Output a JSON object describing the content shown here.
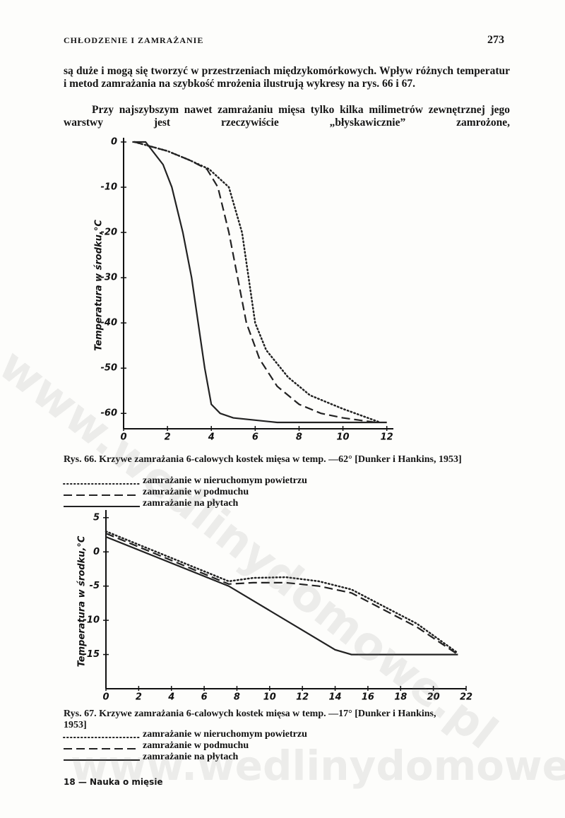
{
  "header": {
    "title": "CHŁODZENIE I ZAMRAŻANIE",
    "page_number": "273"
  },
  "paragraphs": [
    "są duże i mogą się tworzyć w przestrzeniach międzykomórkowych. Wpływ różnych temperatur i metod zamrażania na szybkość mrożenia ilustrują wykresy na rys. 66 i 67.",
    "Przy najszybszym nawet zamrażaniu mięsa tylko kilka milimetrów zewnętrznej jego warstwy jest rzeczywiście „błyskawicznie” zamrożone,"
  ],
  "chart_data": [
    {
      "type": "line",
      "caption": "Rys. 66. Krzywe zamrażania 6-calowych kostek mięsa w temp. —62° [Dunker i Hankins, 1953]",
      "ylabel": "Temperatura w środku,°C",
      "xlim": [
        0,
        12.3
      ],
      "xticks": [
        0,
        2,
        4,
        6,
        8,
        10,
        12
      ],
      "ylim": [
        -63.4,
        0
      ],
      "yticks": [
        0,
        -10,
        -20,
        -30,
        -40,
        -50,
        -60
      ],
      "series": [
        {
          "name": "zamrażanie w nieruchomym powietrzu",
          "style": "dotted",
          "color": "#222",
          "x": [
            0.5,
            2,
            3,
            3.9,
            4.8,
            5.4,
            5.7,
            6,
            6.5,
            7.5,
            8.5,
            10,
            11.7
          ],
          "values": [
            0,
            -2,
            -4,
            -6,
            -10,
            -20,
            -30,
            -40,
            -46,
            -52,
            -56,
            -59,
            -62
          ]
        },
        {
          "name": "zamrażanie w podmuchu",
          "style": "dashed",
          "color": "#222",
          "x": [
            0.5,
            2,
            3,
            3.8,
            4.3,
            4.8,
            5.2,
            5.6,
            6.2,
            7,
            8,
            9,
            10,
            11.5
          ],
          "values": [
            0,
            -2,
            -4,
            -6,
            -10,
            -20,
            -30,
            -40,
            -48,
            -54,
            -58,
            -60,
            -61,
            -62
          ]
        },
        {
          "name": "zamrażanie na płytach",
          "style": "solid",
          "color": "#222",
          "x": [
            0.4,
            1,
            1.8,
            2.2,
            2.7,
            3.1,
            3.4,
            3.7,
            4,
            4.4,
            5,
            7,
            12
          ],
          "values": [
            0,
            0,
            -5,
            -10,
            -20,
            -30,
            -40,
            -50,
            -58,
            -60,
            -61,
            -62,
            -62
          ]
        }
      ]
    },
    {
      "type": "line",
      "caption": "Rys. 67. Krzywe zamrażania 6-calowych kostek mięsa w temp. —17° [Dunker i Hankins, 1953]",
      "ylabel": "Temperatura w środku,°C",
      "xlim": [
        0,
        22
      ],
      "xticks": [
        0,
        2,
        4,
        6,
        8,
        10,
        12,
        14,
        16,
        18,
        20,
        22
      ],
      "ylim": [
        -20,
        5.5
      ],
      "yticks": [
        5,
        0,
        -5,
        -10,
        -15
      ],
      "series": [
        {
          "name": "zamrażanie w nieruchomym powietrzu",
          "style": "dotted",
          "color": "#222",
          "x": [
            0,
            7.5,
            9,
            11,
            13,
            15,
            17,
            19,
            21.5
          ],
          "values": [
            3,
            -4.3,
            -3.8,
            -3.7,
            -4.3,
            -5.5,
            -8,
            -10.5,
            -14.8
          ]
        },
        {
          "name": "zamrażanie w podmuchu",
          "style": "dashed",
          "color": "#222",
          "x": [
            0,
            7.5,
            9,
            11,
            13,
            15,
            17,
            19,
            21.5
          ],
          "values": [
            2.7,
            -4.7,
            -4.5,
            -4.5,
            -5,
            -6,
            -8.5,
            -11,
            -15
          ]
        },
        {
          "name": "zamrażanie na płytach",
          "style": "solid",
          "color": "#222",
          "x": [
            0,
            7.5,
            14,
            15,
            21.5
          ],
          "values": [
            2.2,
            -5,
            -14.3,
            -15,
            -15
          ]
        }
      ]
    }
  ],
  "footer": "18 — Nauka o mięsie",
  "watermark": "www.wedlinydomowe.pl"
}
